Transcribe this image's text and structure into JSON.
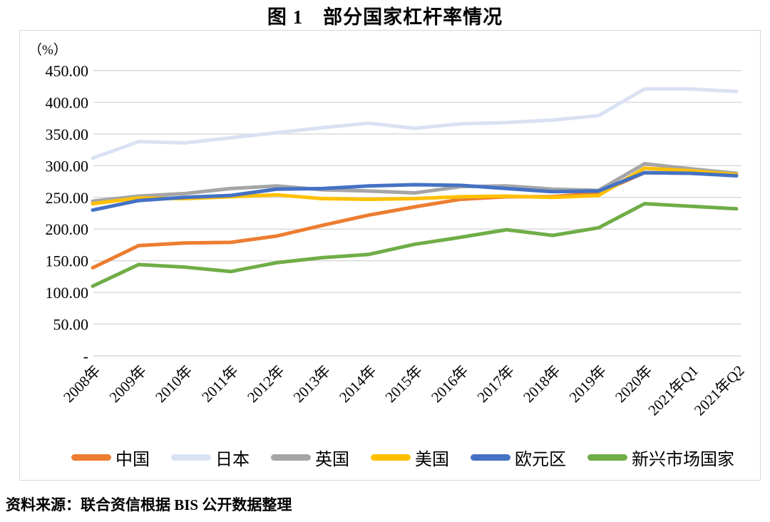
{
  "title": "图 1　部分国家杠杆率情况",
  "unit_label": "（%）",
  "source": "资料来源：联合资信根据 BIS 公开数据整理",
  "chart_data": {
    "type": "line",
    "title": "图 1　部分国家杠杆率情况",
    "ylabel": "（%）",
    "ylim": [
      0,
      450
    ],
    "ytick_step": 50,
    "ytick_labels": [
      "-",
      "50.00",
      "100.00",
      "150.00",
      "200.00",
      "250.00",
      "300.00",
      "350.00",
      "400.00",
      "450.00"
    ],
    "grid": "horizontal",
    "legend_position": "bottom",
    "categories": [
      "2008年",
      "2009年",
      "2010年",
      "2011年",
      "2012年",
      "2013年",
      "2014年",
      "2015年",
      "2016年",
      "2017年",
      "2018年",
      "2019年",
      "2020年",
      "2021年Q1",
      "2021年Q2"
    ],
    "series": [
      {
        "id": "china",
        "name": "中国",
        "color": "#ED7D31",
        "values": [
          139,
          174,
          178,
          179,
          189,
          206,
          222,
          235,
          247,
          251,
          251,
          257,
          289,
          288,
          285
        ]
      },
      {
        "id": "japan",
        "name": "日本",
        "color": "#D9E2F3",
        "values": [
          312,
          338,
          336,
          344,
          352,
          360,
          367,
          359,
          366,
          368,
          372,
          379,
          421,
          421,
          417
        ]
      },
      {
        "id": "uk",
        "name": "英国",
        "color": "#A5A5A5",
        "values": [
          244,
          252,
          256,
          264,
          268,
          262,
          260,
          257,
          267,
          268,
          263,
          261,
          303,
          295,
          288
        ]
      },
      {
        "id": "us",
        "name": "美国",
        "color": "#FFC000",
        "values": [
          240,
          249,
          248,
          251,
          254,
          248,
          247,
          248,
          251,
          252,
          250,
          253,
          296,
          292,
          286
        ]
      },
      {
        "id": "eurozone",
        "name": "欧元区",
        "color": "#4472C4",
        "values": [
          230,
          245,
          250,
          253,
          263,
          264,
          268,
          270,
          269,
          264,
          259,
          260,
          289,
          288,
          284
        ]
      },
      {
        "id": "emerging-markets",
        "name": "新兴市场国家",
        "color": "#70AD47",
        "values": [
          110,
          144,
          140,
          133,
          147,
          155,
          160,
          176,
          187,
          199,
          190,
          202,
          240,
          236,
          232
        ]
      }
    ],
    "gridline_color": "#D9D9D9"
  }
}
